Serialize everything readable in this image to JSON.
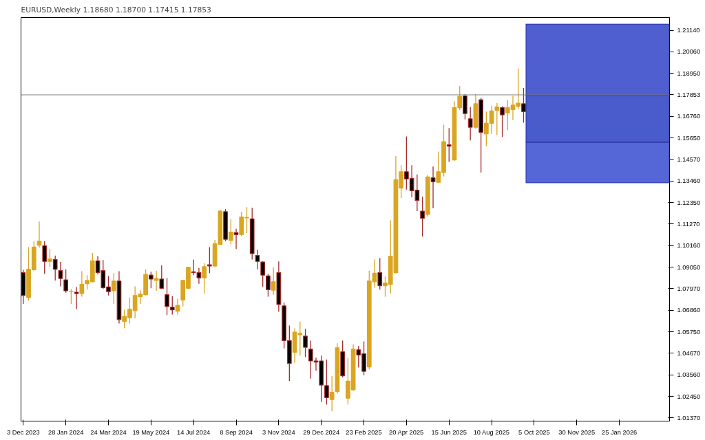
{
  "chart_data": {
    "type": "candlestick",
    "title": "EURUSD,Weekly  1.18680 1.18700 1.17415 1.17853",
    "x": [
      "2023-12-03",
      "2023-12-10",
      "2023-12-17",
      "2023-12-24",
      "2023-12-31",
      "2024-01-07",
      "2024-01-14",
      "2024-01-21",
      "2024-01-28",
      "2024-02-04",
      "2024-02-11",
      "2024-02-18",
      "2024-02-25",
      "2024-03-03",
      "2024-03-10",
      "2024-03-17",
      "2024-03-24",
      "2024-03-31",
      "2024-04-07",
      "2024-04-14",
      "2024-04-21",
      "2024-04-28",
      "2024-05-05",
      "2024-05-12",
      "2024-05-19",
      "2024-05-26",
      "2024-06-02",
      "2024-06-09",
      "2024-06-16",
      "2024-06-23",
      "2024-06-30",
      "2024-07-07",
      "2024-07-14",
      "2024-07-21",
      "2024-07-28",
      "2024-08-04",
      "2024-08-11",
      "2024-08-18",
      "2024-08-25",
      "2024-09-01",
      "2024-09-08",
      "2024-09-15",
      "2024-09-22",
      "2024-09-29",
      "2024-10-06",
      "2024-10-13",
      "2024-10-20",
      "2024-10-27",
      "2024-11-03",
      "2024-11-10",
      "2024-11-17",
      "2024-11-24",
      "2024-12-01",
      "2024-12-08",
      "2024-12-15",
      "2024-12-22",
      "2024-12-29",
      "2025-01-05",
      "2025-01-12",
      "2025-01-19",
      "2025-01-26",
      "2025-02-02",
      "2025-02-09",
      "2025-02-16",
      "2025-02-23",
      "2025-03-02",
      "2025-03-09",
      "2025-03-16",
      "2025-03-23",
      "2025-03-30",
      "2025-04-06",
      "2025-04-13",
      "2025-04-20",
      "2025-04-27",
      "2025-05-04",
      "2025-05-11",
      "2025-05-18",
      "2025-05-25",
      "2025-06-01",
      "2025-06-08",
      "2025-06-15",
      "2025-06-22",
      "2025-06-29",
      "2025-07-06",
      "2025-07-13",
      "2025-07-20",
      "2025-07-27",
      "2025-08-03",
      "2025-08-10",
      "2025-08-17",
      "2025-08-24",
      "2025-08-31",
      "2025-09-07",
      "2025-09-14",
      "2025-09-21"
    ],
    "ohlc": [
      [
        1.0878,
        1.0892,
        1.0718,
        1.0761
      ],
      [
        1.0751,
        1.1008,
        1.0735,
        1.0895
      ],
      [
        1.0892,
        1.1038,
        1.0888,
        1.1008
      ],
      [
        1.1018,
        1.1139,
        1.1005,
        1.1038
      ],
      [
        1.1015,
        1.1038,
        1.0872,
        1.0935
      ],
      [
        1.0935,
        1.0998,
        1.0905,
        1.0948
      ],
      [
        1.0945,
        1.0965,
        1.0838,
        1.0895
      ],
      [
        1.0888,
        1.0932,
        1.0808,
        1.0848
      ],
      [
        1.0841,
        1.0895,
        1.0775,
        1.0785
      ],
      [
        1.078,
        1.0795,
        1.0718,
        1.0781
      ],
      [
        1.0778,
        1.0805,
        1.0691,
        1.0771
      ],
      [
        1.0771,
        1.0885,
        1.0755,
        1.0818
      ],
      [
        1.0821,
        1.0865,
        1.0791,
        1.0838
      ],
      [
        1.0831,
        1.0978,
        1.0828,
        1.0938
      ],
      [
        1.0938,
        1.0962,
        1.0868,
        1.0878
      ],
      [
        1.0888,
        1.0942,
        1.0795,
        1.0801
      ],
      [
        1.0805,
        1.0861,
        1.0761,
        1.0781
      ],
      [
        1.0785,
        1.0875,
        1.0718,
        1.0835
      ],
      [
        1.0835,
        1.0885,
        1.0618,
        1.0638
      ],
      [
        1.0628,
        1.0688,
        1.0594,
        1.0654
      ],
      [
        1.0648,
        1.0751,
        1.0618,
        1.0691
      ],
      [
        1.0684,
        1.0808,
        1.0644,
        1.0761
      ],
      [
        1.0755,
        1.0788,
        1.0718,
        1.0768
      ],
      [
        1.0765,
        1.0895,
        1.0761,
        1.0868
      ],
      [
        1.0865,
        1.0882,
        1.0798,
        1.0845
      ],
      [
        1.0838,
        1.0888,
        1.0785,
        1.0848
      ],
      [
        1.0845,
        1.0915,
        1.0795,
        1.0798
      ],
      [
        1.0765,
        1.0851,
        1.0661,
        1.0705
      ],
      [
        1.0701,
        1.0758,
        1.0664,
        1.0688
      ],
      [
        1.0681,
        1.0745,
        1.0661,
        1.0711
      ],
      [
        1.0738,
        1.0841,
        1.0705,
        1.0838
      ],
      [
        1.0798,
        1.0908,
        1.0798,
        1.0905
      ],
      [
        1.0882,
        1.0945,
        1.0865,
        1.0878
      ],
      [
        1.0878,
        1.0902,
        1.0821,
        1.0851
      ],
      [
        1.0851,
        1.0925,
        1.0771,
        1.0908
      ],
      [
        1.0918,
        1.1008,
        1.0875,
        1.0912
      ],
      [
        1.0912,
        1.1045,
        1.0905,
        1.1025
      ],
      [
        1.1022,
        1.1199,
        1.1018,
        1.1192
      ],
      [
        1.1189,
        1.1202,
        1.1038,
        1.1048
      ],
      [
        1.1042,
        1.1152,
        1.1022,
        1.1085
      ],
      [
        1.1082,
        1.1102,
        1.0998,
        1.1072
      ],
      [
        1.1072,
        1.1189,
        1.1065,
        1.1162
      ],
      [
        1.1157,
        1.1212,
        1.1079,
        1.1159
      ],
      [
        1.1152,
        1.1209,
        1.0945,
        1.0975
      ],
      [
        1.0965,
        1.0995,
        1.0895,
        1.0935
      ],
      [
        1.0932,
        1.0935,
        1.0805,
        1.0865
      ],
      [
        1.0861,
        1.0872,
        1.0755,
        1.0791
      ],
      [
        1.0788,
        1.0905,
        1.0765,
        1.0831
      ],
      [
        1.0878,
        1.0935,
        1.0678,
        1.0715
      ],
      [
        1.0708,
        1.0725,
        1.0491,
        1.0531
      ],
      [
        1.0531,
        1.0608,
        1.0324,
        1.0414
      ],
      [
        1.0471,
        1.0594,
        1.0417,
        1.0574
      ],
      [
        1.0561,
        1.0628,
        1.0454,
        1.0568
      ],
      [
        1.0554,
        1.0591,
        1.0447,
        1.0497
      ],
      [
        1.0487,
        1.0531,
        1.0337,
        1.0427
      ],
      [
        1.0427,
        1.0444,
        1.0377,
        1.0421
      ],
      [
        1.0427,
        1.0454,
        1.0217,
        1.0304
      ],
      [
        1.0301,
        1.0434,
        1.0204,
        1.024
      ],
      [
        1.023,
        1.0351,
        1.017,
        1.0267
      ],
      [
        1.0271,
        1.0517,
        1.026,
        1.0494
      ],
      [
        1.0474,
        1.0531,
        1.0344,
        1.0351
      ],
      [
        1.0237,
        1.0441,
        1.0204,
        1.0324
      ],
      [
        1.028,
        1.0511,
        1.0274,
        1.0487
      ],
      [
        1.0484,
        1.0504,
        1.0394,
        1.0457
      ],
      [
        1.0464,
        1.0527,
        1.0354,
        1.0374
      ],
      [
        1.0397,
        1.0888,
        1.0384,
        1.0835
      ],
      [
        1.0831,
        1.0945,
        1.0801,
        1.0875
      ],
      [
        1.0878,
        1.0952,
        1.0791,
        1.0811
      ],
      [
        1.0811,
        1.0858,
        1.0755,
        1.0825
      ],
      [
        1.0818,
        1.1145,
        1.0771,
        1.0962
      ],
      [
        1.0878,
        1.1473,
        1.0872,
        1.1352
      ],
      [
        1.1309,
        1.1426,
        1.1259,
        1.1393
      ],
      [
        1.1393,
        1.1573,
        1.1302,
        1.1356
      ],
      [
        1.1359,
        1.1426,
        1.1262,
        1.1296
      ],
      [
        1.1299,
        1.1379,
        1.1192,
        1.1246
      ],
      [
        1.1192,
        1.1266,
        1.1062,
        1.1155
      ],
      [
        1.1175,
        1.1376,
        1.1165,
        1.1366
      ],
      [
        1.1362,
        1.1419,
        1.1206,
        1.1342
      ],
      [
        1.1339,
        1.1496,
        1.1339,
        1.1393
      ],
      [
        1.1389,
        1.1633,
        1.1369,
        1.1546
      ],
      [
        1.153,
        1.1616,
        1.1443,
        1.1523
      ],
      [
        1.1453,
        1.1753,
        1.1449,
        1.172
      ],
      [
        1.172,
        1.183,
        1.1707,
        1.1777
      ],
      [
        1.178,
        1.179,
        1.166,
        1.169
      ],
      [
        1.1663,
        1.1723,
        1.1553,
        1.162
      ],
      [
        1.162,
        1.179,
        1.1613,
        1.174
      ],
      [
        1.176,
        1.177,
        1.1389,
        1.1593
      ],
      [
        1.1586,
        1.17,
        1.1523,
        1.164
      ],
      [
        1.164,
        1.173,
        1.1586,
        1.1703
      ],
      [
        1.1707,
        1.1743,
        1.158,
        1.1723
      ],
      [
        1.172,
        1.1727,
        1.157,
        1.1683
      ],
      [
        1.1693,
        1.176,
        1.1606,
        1.172
      ],
      [
        1.171,
        1.178,
        1.1656,
        1.1733
      ],
      [
        1.1727,
        1.192,
        1.1713,
        1.1743
      ],
      [
        1.174,
        1.182,
        1.1643,
        1.17
      ]
    ],
    "xlim": [
      "2023-11-30",
      "2026-04-01"
    ],
    "xticks": [
      {
        "value": "2023-12-03",
        "label": "3 Dec 2023"
      },
      {
        "value": "2024-01-28",
        "label": "28 Jan 2024"
      },
      {
        "value": "2024-03-24",
        "label": "24 Mar 2024"
      },
      {
        "value": "2024-05-19",
        "label": "19 May 2024"
      },
      {
        "value": "2024-07-14",
        "label": "14 Jul 2024"
      },
      {
        "value": "2024-09-08",
        "label": "8 Sep 2024"
      },
      {
        "value": "2024-11-03",
        "label": "3 Nov 2024"
      },
      {
        "value": "2024-12-29",
        "label": "29 Dec 2024"
      },
      {
        "value": "2025-02-23",
        "label": "23 Feb 2025"
      },
      {
        "value": "2025-04-20",
        "label": "20 Apr 2025"
      },
      {
        "value": "2025-06-15",
        "label": "15 Jun 2025"
      },
      {
        "value": "2025-08-10",
        "label": "10 Aug 2025"
      },
      {
        "value": "2025-10-05",
        "label": "5 Oct 2025"
      },
      {
        "value": "2025-11-30",
        "label": "30 Nov 2025"
      },
      {
        "value": "2026-01-25",
        "label": "25 Jan 2026"
      }
    ],
    "ylim": [
      1.012,
      1.218
    ],
    "yticks": [
      {
        "value": 1.2114,
        "label": "1.21140"
      },
      {
        "value": 1.2006,
        "label": "1.20060"
      },
      {
        "value": 1.1895,
        "label": "1.18950"
      },
      {
        "value": 1.1676,
        "label": "1.16760"
      },
      {
        "value": 1.1565,
        "label": "1.15650"
      },
      {
        "value": 1.1457,
        "label": "1.14570"
      },
      {
        "value": 1.1346,
        "label": "1.13460"
      },
      {
        "value": 1.1235,
        "label": "1.12350"
      },
      {
        "value": 1.1127,
        "label": "1.11270"
      },
      {
        "value": 1.1016,
        "label": "1.10160"
      },
      {
        "value": 1.0905,
        "label": "1.09050"
      },
      {
        "value": 1.0797,
        "label": "1.07970"
      },
      {
        "value": 1.0686,
        "label": "1.06860"
      },
      {
        "value": 1.0575,
        "label": "1.05750"
      },
      {
        "value": 1.0467,
        "label": "1.04670"
      },
      {
        "value": 1.0356,
        "label": "1.03560"
      },
      {
        "value": 1.0245,
        "label": "1.02450"
      },
      {
        "value": 1.0137,
        "label": "1.01370"
      }
    ],
    "ref_lines": [
      {
        "axis": "y",
        "value": 1.17853,
        "label": "1.17853",
        "color": "#808080"
      }
    ],
    "bands": [
      {
        "axis": "y",
        "from": 1.1783,
        "to": 1.2147,
        "color": "#4f5fcf"
      },
      {
        "axis": "y",
        "from": 1.1543,
        "to": 1.1783,
        "color": "#4a5ccc"
      },
      {
        "axis": "y",
        "from": 1.1336,
        "to": 1.1543,
        "color": "#5566d6"
      }
    ],
    "grid": false
  }
}
